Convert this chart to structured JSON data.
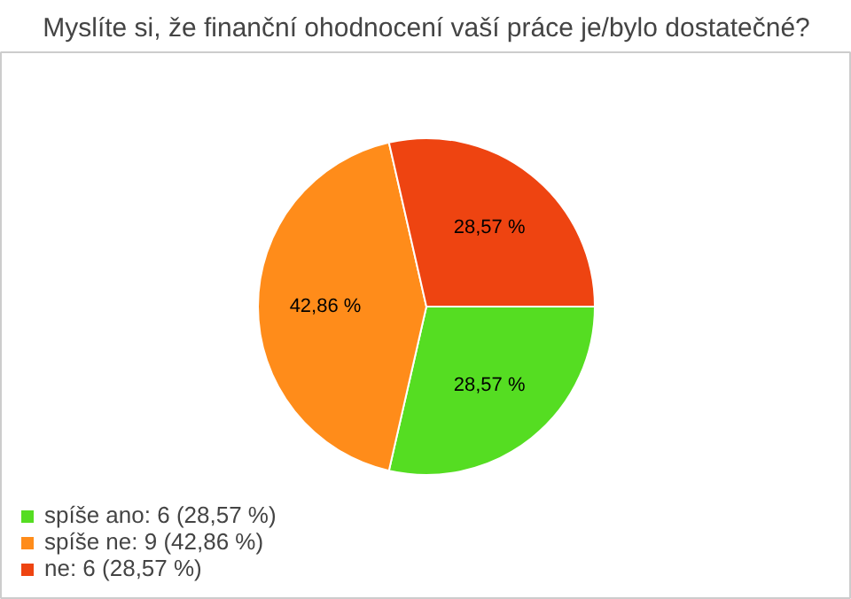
{
  "chart_data": {
    "type": "pie",
    "title": "Myslíte si, že finanční ohodnocení vaší práce je/bylo dostatečné?",
    "categories": [
      "spíše ano: 6 (28,57 %)",
      "spíše ne: 9 (42,86 %)",
      "ne: 6 (28,57 %)"
    ],
    "values": [
      28.57,
      42.86,
      28.57
    ],
    "colors": [
      "#55dd22",
      "#ff8c1a",
      "#ee4411"
    ],
    "value_labels": [
      "28,57 %",
      "42,86 %",
      "28,57 %"
    ],
    "legend": "bottom left"
  }
}
